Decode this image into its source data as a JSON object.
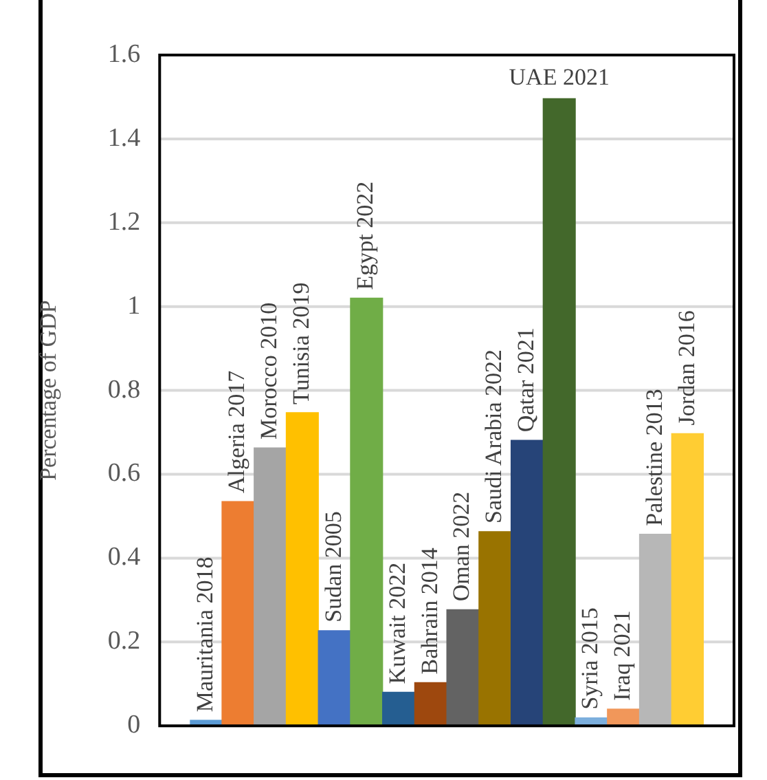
{
  "chart_data": {
    "type": "bar",
    "ylabel": "Percentage of GDP",
    "categories": [
      "Mauritania 2018",
      "Algeria 2017",
      "Morocco 2010",
      "Tunisia 2019",
      "Sudan 2005",
      "Egypt 2022",
      "Kuwait 2022",
      "Bahrain 2014",
      "Oman 2022",
      "Saudi Arabia 2022",
      "Qatar 2021",
      "UAE 2021",
      "Syria 2015",
      "Iraq 2021",
      "Palestine 2013",
      "Jordan 2016"
    ],
    "values": [
      0.013,
      0.535,
      0.663,
      0.747,
      0.227,
      1.02,
      0.08,
      0.103,
      0.277,
      0.463,
      0.681,
      1.496,
      0.019,
      0.04,
      0.457,
      0.697
    ],
    "colors": [
      "#5b9bd5",
      "#ed7d31",
      "#a5a5a5",
      "#ffc000",
      "#4472c4",
      "#70ad47",
      "#255e91",
      "#9e480e",
      "#636363",
      "#997300",
      "#264478",
      "#43682b",
      "#7cafdd",
      "#f1975a",
      "#b7b7b7",
      "#ffcd33"
    ],
    "ylim": [
      0,
      1.6
    ],
    "yticks": [
      0,
      0.2,
      0.4,
      0.6,
      0.8,
      1,
      1.2,
      1.4,
      1.6
    ],
    "grid": "y"
  }
}
